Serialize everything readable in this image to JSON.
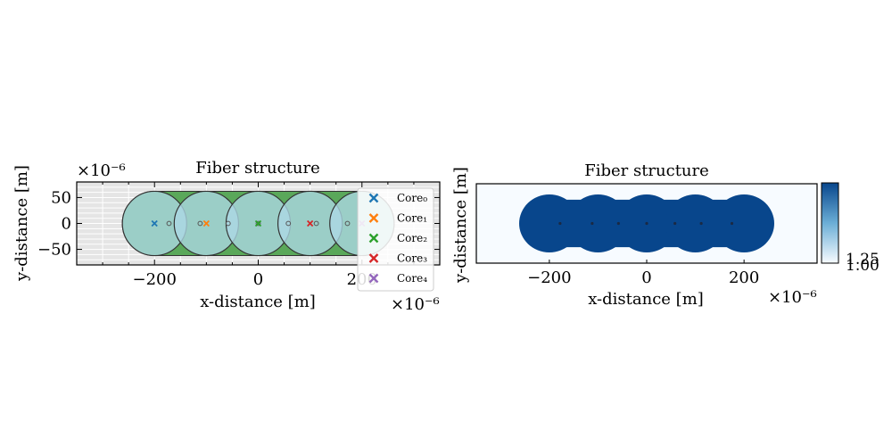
{
  "chart_data": [
    {
      "type": "scatter",
      "title": "Fiber structure",
      "xlabel": "x-distance [m]",
      "ylabel": "y-distance [m]",
      "x_offset_label": "×10⁻⁶",
      "y_offset_label": "×10⁻⁶",
      "xlim": [
        -350,
        350
      ],
      "ylim": [
        -80,
        80
      ],
      "x_ticks": [
        -200,
        0,
        200
      ],
      "x_tick_labels": [
        "−200",
        "0",
        "200"
      ],
      "y_ticks": [
        -50,
        0,
        50
      ],
      "y_tick_labels": [
        "−50",
        "0",
        "50"
      ],
      "background": "#e5e5e5",
      "cladding_color": "#5aa85a",
      "core_color": "#add8e6",
      "core_radius": 62,
      "cores": [
        {
          "name": "Core₀",
          "x": -200,
          "y": 0,
          "color": "#1f77b4"
        },
        {
          "name": "Core₁",
          "x": -100,
          "y": 0,
          "color": "#ff7f0e"
        },
        {
          "name": "Core₂",
          "x": 0,
          "y": 0,
          "color": "#2ca02c"
        },
        {
          "name": "Core₃",
          "x": 100,
          "y": 0,
          "color": "#d62728"
        },
        {
          "name": "Core₄",
          "x": 200,
          "y": 0,
          "color": "#9467bd"
        }
      ],
      "small_markers_x": [
        -172,
        -112,
        -58,
        0,
        58,
        112,
        172
      ],
      "legend_position": "upper-right"
    },
    {
      "type": "heatmap",
      "title": "Fiber structure",
      "xlabel": "x-distance [m]",
      "ylabel": "y-distance [m]",
      "x_offset_label": "×10⁻⁶",
      "xlim": [
        -350,
        350
      ],
      "ylim": [
        -85,
        85
      ],
      "x_ticks": [
        -200,
        0,
        200
      ],
      "x_tick_labels": [
        "−200",
        "0",
        "200"
      ],
      "low_color": "#f7fbff",
      "high_color": "#08468c",
      "core_centers_x": [
        -200,
        -100,
        0,
        100,
        200
      ],
      "core_radius": 62,
      "dot_markers_x": [
        -178,
        -112,
        -58,
        0,
        58,
        112,
        175
      ],
      "colorbar": {
        "ticks": [
          "1.25",
          "1.00"
        ]
      }
    }
  ]
}
